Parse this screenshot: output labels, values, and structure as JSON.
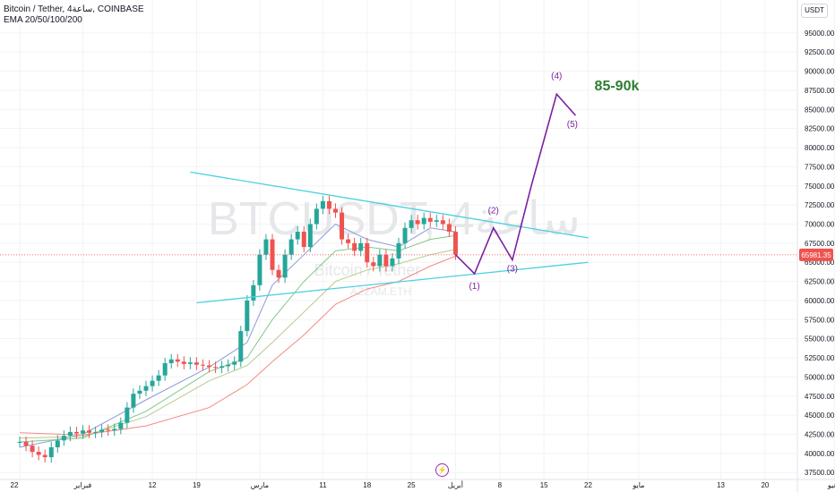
{
  "header": {
    "title": "Bitcoin / Tether, 4ساعة, COINBASE",
    "indicator": "EMA 20/50/100/200",
    "currency": "USDT"
  },
  "watermark": {
    "symbol": "BTCUSDT, 4ساعة",
    "subtitle": "Bitcoin / Tether",
    "author": "AZZAM.ETH"
  },
  "price_label": "65981.35",
  "chart_data": {
    "type": "line",
    "title": "Bitcoin / Tether, 4ساعة, COINBASE",
    "xlabel": "",
    "ylabel": "",
    "ylim": [
      37500,
      97500
    ],
    "y_ticks": [
      37500,
      40000,
      42500,
      45000,
      47500,
      50000,
      52500,
      55000,
      57500,
      60000,
      62500,
      65000,
      67500,
      70000,
      72500,
      75000,
      77500,
      80000,
      82500,
      85000,
      87500,
      90000,
      92500,
      95000
    ],
    "x_ticks": [
      {
        "label": "22",
        "x": 0
      },
      {
        "label": "فبراير",
        "x": 10
      },
      {
        "label": "12",
        "x": 21
      },
      {
        "label": "19",
        "x": 28
      },
      {
        "label": "مارس",
        "x": 38
      },
      {
        "label": "11",
        "x": 48
      },
      {
        "label": "18",
        "x": 55
      },
      {
        "label": "25",
        "x": 62
      },
      {
        "label": "أبريل",
        "x": 69
      },
      {
        "label": "8",
        "x": 76
      },
      {
        "label": "15",
        "x": 83
      },
      {
        "label": "22",
        "x": 90
      },
      {
        "label": "مايو",
        "x": 98
      },
      {
        "label": "13",
        "x": 111
      },
      {
        "label": "20",
        "x": 118
      },
      {
        "label": "يونيو",
        "x": 129
      }
    ],
    "price_series": {
      "name": "Bitcoin / Tether",
      "x": [
        0,
        1,
        2,
        3,
        4,
        5,
        6,
        7,
        8,
        9,
        10,
        11,
        12,
        13,
        14,
        15,
        16,
        17,
        18,
        19,
        20,
        21,
        22,
        23,
        24,
        25,
        26,
        27,
        28,
        29,
        30,
        31,
        32,
        33,
        34,
        35,
        36,
        37,
        38,
        39,
        40,
        41,
        42,
        43,
        44,
        45,
        46,
        47,
        48,
        49,
        50,
        51,
        52,
        53,
        54,
        55,
        56,
        57,
        58,
        59,
        60,
        61,
        62,
        63,
        64,
        65,
        66,
        67,
        68,
        69
      ],
      "y": [
        41500,
        41000,
        40200,
        39800,
        39500,
        40800,
        41700,
        42300,
        42800,
        42600,
        43000,
        42700,
        42800,
        43100,
        43000,
        43200,
        44000,
        46000,
        47800,
        48200,
        48800,
        49500,
        50200,
        51800,
        52300,
        52000,
        51700,
        51900,
        51600,
        51500,
        51300,
        51200,
        51400,
        51600,
        52000,
        56000,
        60000,
        62000,
        66000,
        68000,
        64000,
        63000,
        66000,
        68000,
        69000,
        67000,
        70000,
        72000,
        73000,
        72000,
        71500,
        68000,
        67500,
        66500,
        67500,
        65000,
        64500,
        66000,
        64500,
        65500,
        67500,
        69500,
        70500,
        70000,
        70800,
        70300,
        70500,
        70000,
        69000,
        66000
      ]
    },
    "ema_series": [
      {
        "name": "EMA 20",
        "color": "#8e9bd6",
        "x": [
          0,
          10,
          20,
          30,
          36,
          40,
          45,
          50,
          55,
          60,
          65,
          69
        ],
        "y": [
          40800,
          42500,
          47000,
          51300,
          54500,
          62000,
          66000,
          70000,
          68000,
          67000,
          69500,
          69000
        ]
      },
      {
        "name": "EMA 50",
        "color": "#7fc98a",
        "x": [
          0,
          10,
          20,
          30,
          36,
          40,
          45,
          50,
          55,
          60,
          65,
          69
        ],
        "y": [
          41500,
          42000,
          45500,
          50700,
          52500,
          57500,
          62500,
          66500,
          67000,
          66500,
          68000,
          68500
        ]
      },
      {
        "name": "EMA 100",
        "color": "#b8c98a",
        "x": [
          0,
          10,
          20,
          30,
          36,
          40,
          45,
          50,
          55,
          60,
          65,
          69
        ],
        "y": [
          42000,
          42200,
          44800,
          49500,
          51500,
          54500,
          58500,
          62500,
          64000,
          64800,
          66000,
          66700
        ]
      },
      {
        "name": "EMA 200",
        "color": "#f28b82",
        "x": [
          0,
          10,
          20,
          30,
          36,
          40,
          45,
          50,
          55,
          60,
          65,
          69
        ],
        "y": [
          42700,
          42400,
          43600,
          46000,
          49000,
          52000,
          55500,
          59500,
          61500,
          62500,
          64500,
          65800
        ]
      }
    ],
    "trendlines": [
      {
        "name": "upper",
        "color": "#4dd0e1",
        "x": [
          27,
          90
        ],
        "y": [
          76800,
          68200
        ]
      },
      {
        "name": "lower",
        "color": "#4dd0e1",
        "x": [
          28,
          90
        ],
        "y": [
          59700,
          65000
        ]
      }
    ],
    "projection": {
      "color": "#7b1fa2",
      "x": [
        69,
        72,
        75,
        78,
        81,
        85,
        88
      ],
      "y": [
        66000,
        63500,
        69500,
        65300,
        75000,
        87000,
        84200
      ]
    },
    "annotations": [
      {
        "text": "(1)",
        "x": 72,
        "y": 61500
      },
      {
        "text": "(2)",
        "x": 75,
        "y": 71400
      },
      {
        "text": "(3)",
        "x": 78,
        "y": 63800
      },
      {
        "text": "(4)",
        "x": 85,
        "y": 89000
      },
      {
        "text": "(5)",
        "x": 87.5,
        "y": 82700
      },
      {
        "text": "85-90k",
        "x": 91,
        "y": 87500
      }
    ],
    "current_price": 65981.35
  }
}
